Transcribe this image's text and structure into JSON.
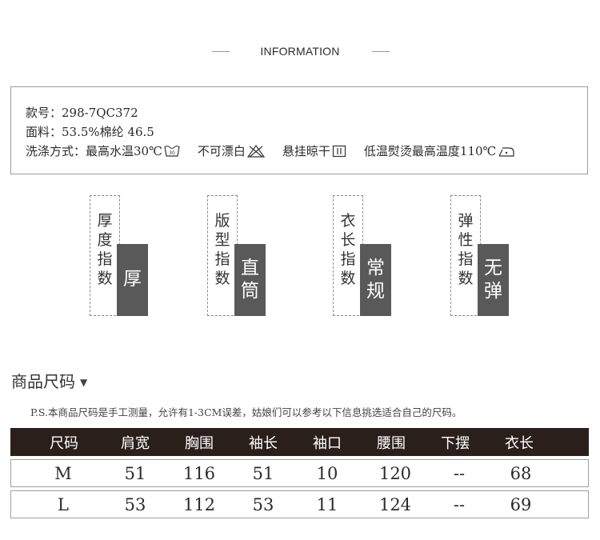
{
  "header": {
    "title": "INFORMATION"
  },
  "product": {
    "style_no": "款号：298-7QC372",
    "fabric": "面料：53.5%棉纶 46.5",
    "care_label": "洗涤方式：",
    "care": [
      {
        "text": "最高水温30℃",
        "icon": "wash-30-icon"
      },
      {
        "text": "不可漂白",
        "icon": "no-bleach-icon"
      },
      {
        "text": "悬挂晾干",
        "icon": "hang-dry-icon"
      },
      {
        "text": "低温熨烫最高温度110℃",
        "icon": "iron-low-icon"
      }
    ]
  },
  "indices": [
    {
      "label": [
        "厚",
        "度",
        "指",
        "数"
      ],
      "value": [
        "厚"
      ]
    },
    {
      "label": [
        "版",
        "型",
        "指",
        "数"
      ],
      "value": [
        "直",
        "筒"
      ]
    },
    {
      "label": [
        "衣",
        "长",
        "指",
        "数"
      ],
      "value": [
        "常",
        "规"
      ]
    },
    {
      "label": [
        "弹",
        "性",
        "指",
        "数"
      ],
      "value": [
        "无",
        "弹"
      ]
    }
  ],
  "size_section": {
    "title": "商品尺码",
    "arrow": "▼",
    "note": "P.S.本商品尺码是手工测量，允许有1-3CM误差，姑娘们可以参考以下信息挑选适合自己的尺码。"
  },
  "size_table": {
    "headers": [
      "尺码",
      "肩宽",
      "胸围",
      "袖长",
      "袖口",
      "腰围",
      "下摆",
      "衣长"
    ],
    "rows": [
      [
        "M",
        "51",
        "116",
        "51",
        "10",
        "120",
        "--",
        "68"
      ],
      [
        "L",
        "53",
        "112",
        "53",
        "11",
        "124",
        "--",
        "69"
      ]
    ]
  }
}
